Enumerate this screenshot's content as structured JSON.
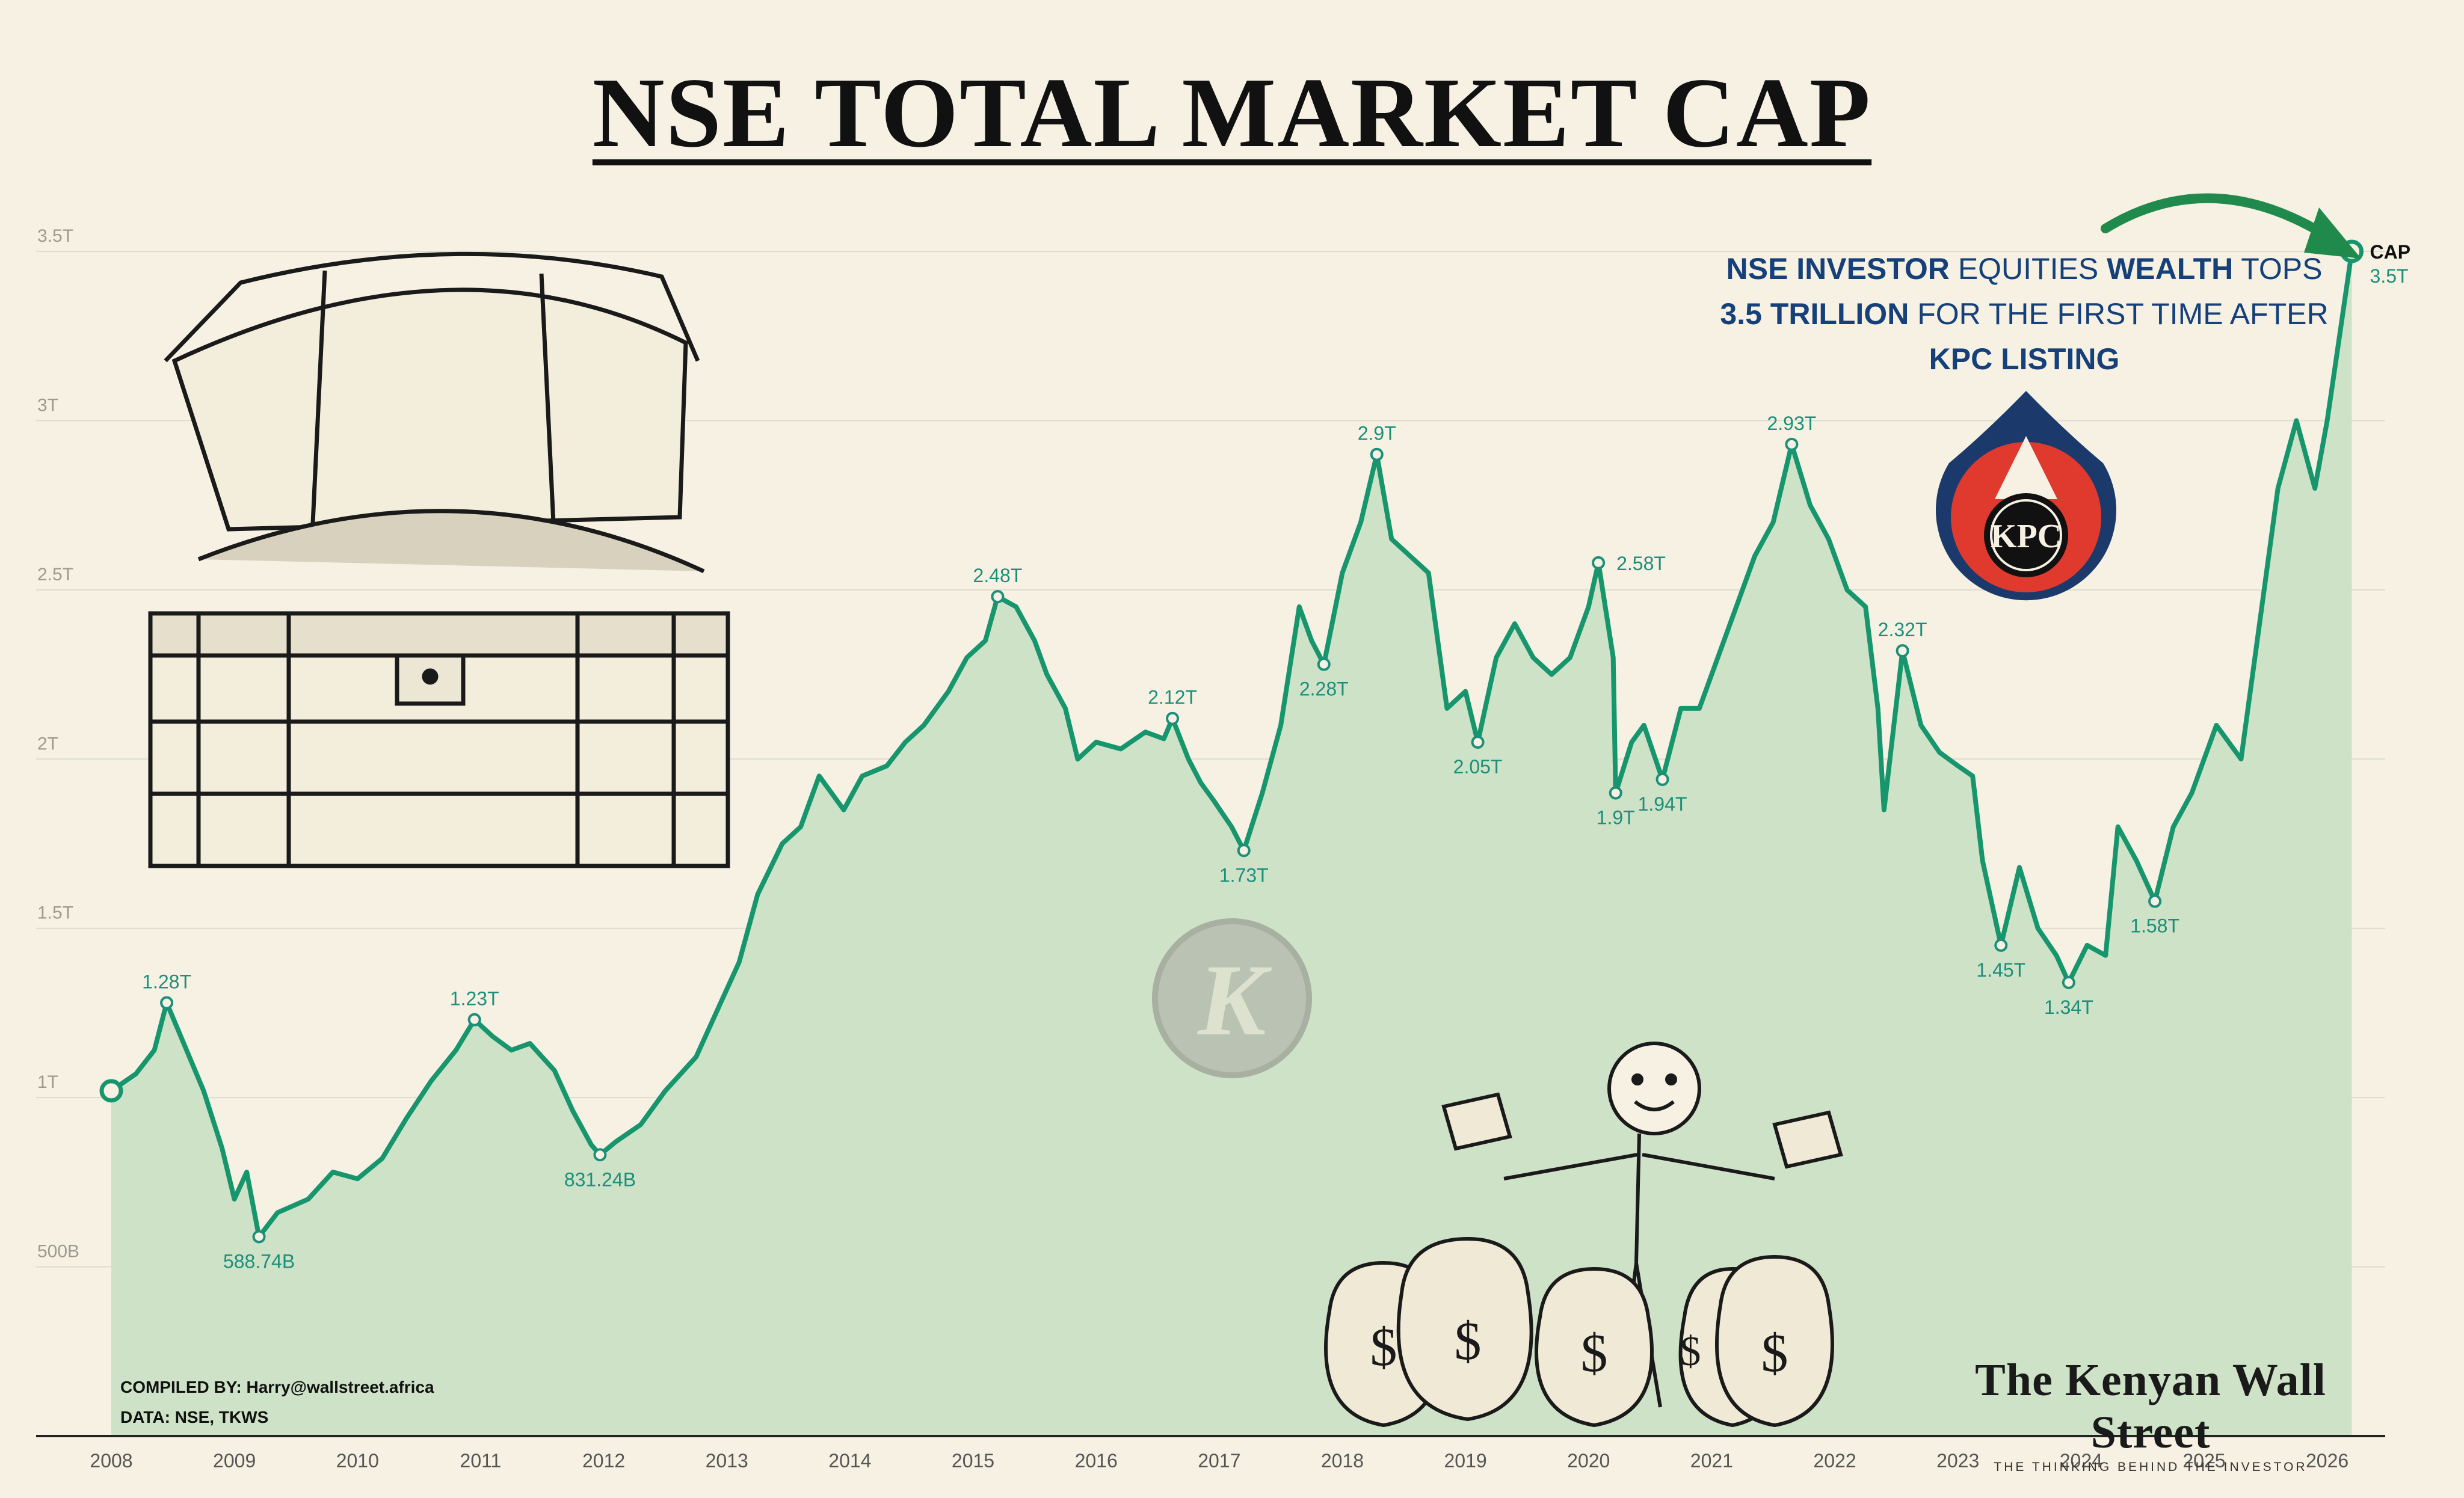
{
  "title": "NSE TOTAL MARKET CAP",
  "headline": {
    "part1_bold": "NSE INVESTOR",
    "part2": " EQUITIES ",
    "part3_bold": "WEALTH",
    "part4": " TOPS",
    "part5_bold": "3.5 TRILLION",
    "part6": " FOR THE FIRST TIME AFTER",
    "part7_bold": "KPC LISTING"
  },
  "kpc_logo_text": "KPC",
  "watermark_letter": "K",
  "end_label": {
    "name": "CAP",
    "value": "3.5T"
  },
  "credits": {
    "compiled": "COMPILED BY: Harry@wallstreet.africa",
    "data": "DATA: NSE, TKWS"
  },
  "brand": {
    "name": "The Kenyan Wall Street",
    "tagline": "THE THINKING BEHIND THE INVESTOR"
  },
  "colors": {
    "line": "#17966e",
    "area": "#cde2c7",
    "label": "#1b8f7a",
    "background": "#f6f1e3",
    "headline": "#16407a"
  },
  "chart_data": {
    "type": "area",
    "series": [
      {
        "name": "CAP"
      }
    ],
    "xlabel": "",
    "ylabel": "",
    "xlim": [
      2008,
      2026.3
    ],
    "ylim": [
      0,
      3.5
    ],
    "x_ticks": [
      2008,
      2009,
      2010,
      2011,
      2012,
      2013,
      2014,
      2015,
      2016,
      2017,
      2018,
      2019,
      2020,
      2021,
      2022,
      2023,
      2024,
      2025,
      2026
    ],
    "y_ticks": [
      {
        "value": 0.5,
        "label": "500B"
      },
      {
        "value": 1,
        "label": "1T"
      },
      {
        "value": 1.5,
        "label": "1.5T"
      },
      {
        "value": 2,
        "label": "2T"
      },
      {
        "value": 2.5,
        "label": "2.5T"
      },
      {
        "value": 3,
        "label": "3T"
      },
      {
        "value": 3.5,
        "label": "3.5T"
      }
    ],
    "grid": true,
    "points": [
      [
        2008.0,
        1.02
      ],
      [
        2008.2,
        1.07
      ],
      [
        2008.35,
        1.14
      ],
      [
        2008.45,
        1.28
      ],
      [
        2008.6,
        1.15
      ],
      [
        2008.75,
        1.02
      ],
      [
        2008.9,
        0.85
      ],
      [
        2009.0,
        0.7
      ],
      [
        2009.1,
        0.78
      ],
      [
        2009.2,
        0.589
      ],
      [
        2009.35,
        0.66
      ],
      [
        2009.6,
        0.7
      ],
      [
        2009.8,
        0.78
      ],
      [
        2010.0,
        0.76
      ],
      [
        2010.2,
        0.82
      ],
      [
        2010.4,
        0.94
      ],
      [
        2010.6,
        1.05
      ],
      [
        2010.8,
        1.14
      ],
      [
        2010.95,
        1.23
      ],
      [
        2011.1,
        1.18
      ],
      [
        2011.25,
        1.14
      ],
      [
        2011.4,
        1.16
      ],
      [
        2011.6,
        1.08
      ],
      [
        2011.75,
        0.96
      ],
      [
        2011.9,
        0.86
      ],
      [
        2011.97,
        0.831
      ],
      [
        2012.1,
        0.87
      ],
      [
        2012.3,
        0.92
      ],
      [
        2012.5,
        1.02
      ],
      [
        2012.75,
        1.12
      ],
      [
        2012.95,
        1.28
      ],
      [
        2013.1,
        1.4
      ],
      [
        2013.25,
        1.6
      ],
      [
        2013.45,
        1.75
      ],
      [
        2013.6,
        1.8
      ],
      [
        2013.75,
        1.95
      ],
      [
        2013.95,
        1.85
      ],
      [
        2014.1,
        1.95
      ],
      [
        2014.3,
        1.98
      ],
      [
        2014.45,
        2.05
      ],
      [
        2014.6,
        2.1
      ],
      [
        2014.8,
        2.2
      ],
      [
        2014.95,
        2.3
      ],
      [
        2015.1,
        2.35
      ],
      [
        2015.2,
        2.48
      ],
      [
        2015.35,
        2.45
      ],
      [
        2015.5,
        2.35
      ],
      [
        2015.6,
        2.25
      ],
      [
        2015.75,
        2.15
      ],
      [
        2015.85,
        2.0
      ],
      [
        2016.0,
        2.05
      ],
      [
        2016.2,
        2.03
      ],
      [
        2016.4,
        2.08
      ],
      [
        2016.55,
        2.06
      ],
      [
        2016.62,
        2.12
      ],
      [
        2016.75,
        2.0
      ],
      [
        2016.85,
        1.93
      ],
      [
        2016.95,
        1.88
      ],
      [
        2017.1,
        1.8
      ],
      [
        2017.2,
        1.73
      ],
      [
        2017.35,
        1.9
      ],
      [
        2017.5,
        2.1
      ],
      [
        2017.65,
        2.45
      ],
      [
        2017.75,
        2.35
      ],
      [
        2017.85,
        2.28
      ],
      [
        2018.0,
        2.55
      ],
      [
        2018.15,
        2.7
      ],
      [
        2018.28,
        2.9
      ],
      [
        2018.4,
        2.65
      ],
      [
        2018.55,
        2.6
      ],
      [
        2018.7,
        2.55
      ],
      [
        2018.85,
        2.15
      ],
      [
        2019.0,
        2.2
      ],
      [
        2019.1,
        2.05
      ],
      [
        2019.25,
        2.3
      ],
      [
        2019.4,
        2.4
      ],
      [
        2019.55,
        2.3
      ],
      [
        2019.7,
        2.25
      ],
      [
        2019.85,
        2.3
      ],
      [
        2020.0,
        2.45
      ],
      [
        2020.08,
        2.58
      ],
      [
        2020.2,
        2.3
      ],
      [
        2020.22,
        1.9
      ],
      [
        2020.35,
        2.05
      ],
      [
        2020.45,
        2.1
      ],
      [
        2020.6,
        1.94
      ],
      [
        2020.75,
        2.15
      ],
      [
        2020.9,
        2.15
      ],
      [
        2021.05,
        2.3
      ],
      [
        2021.2,
        2.45
      ],
      [
        2021.35,
        2.6
      ],
      [
        2021.5,
        2.7
      ],
      [
        2021.65,
        2.93
      ],
      [
        2021.8,
        2.75
      ],
      [
        2021.95,
        2.65
      ],
      [
        2022.1,
        2.5
      ],
      [
        2022.25,
        2.45
      ],
      [
        2022.35,
        2.15
      ],
      [
        2022.4,
        1.85
      ],
      [
        2022.55,
        2.32
      ],
      [
        2022.7,
        2.1
      ],
      [
        2022.85,
        2.02
      ],
      [
        2023.0,
        1.98
      ],
      [
        2023.12,
        1.95
      ],
      [
        2023.2,
        1.7
      ],
      [
        2023.35,
        1.45
      ],
      [
        2023.5,
        1.68
      ],
      [
        2023.65,
        1.5
      ],
      [
        2023.8,
        1.42
      ],
      [
        2023.9,
        1.34
      ],
      [
        2024.05,
        1.45
      ],
      [
        2024.2,
        1.42
      ],
      [
        2024.3,
        1.8
      ],
      [
        2024.45,
        1.7
      ],
      [
        2024.6,
        1.58
      ],
      [
        2024.75,
        1.8
      ],
      [
        2024.9,
        1.9
      ],
      [
        2025.1,
        2.1
      ],
      [
        2025.3,
        2.0
      ],
      [
        2025.45,
        2.4
      ],
      [
        2025.6,
        2.8
      ],
      [
        2025.75,
        3.0
      ],
      [
        2025.9,
        2.8
      ],
      [
        2026.0,
        3.0
      ],
      [
        2026.1,
        3.25
      ],
      [
        2026.2,
        3.5
      ]
    ],
    "annotations": [
      {
        "x": 2008.45,
        "y": 1.28,
        "label": "1.28T",
        "pos": "above"
      },
      {
        "x": 2009.2,
        "y": 0.589,
        "label": "588.74B",
        "pos": "below"
      },
      {
        "x": 2010.95,
        "y": 1.23,
        "label": "1.23T",
        "pos": "above"
      },
      {
        "x": 2011.97,
        "y": 0.831,
        "label": "831.24B",
        "pos": "below"
      },
      {
        "x": 2015.2,
        "y": 2.48,
        "label": "2.48T",
        "pos": "above"
      },
      {
        "x": 2016.62,
        "y": 2.12,
        "label": "2.12T",
        "pos": "above"
      },
      {
        "x": 2017.2,
        "y": 1.73,
        "label": "1.73T",
        "pos": "below"
      },
      {
        "x": 2017.85,
        "y": 2.28,
        "label": "2.28T",
        "pos": "below"
      },
      {
        "x": 2018.28,
        "y": 2.9,
        "label": "2.9T",
        "pos": "above"
      },
      {
        "x": 2019.1,
        "y": 2.05,
        "label": "2.05T",
        "pos": "below"
      },
      {
        "x": 2020.08,
        "y": 2.58,
        "label": "2.58T",
        "pos": "right"
      },
      {
        "x": 2020.22,
        "y": 1.9,
        "label": "1.9T",
        "pos": "below"
      },
      {
        "x": 2020.6,
        "y": 1.94,
        "label": "1.94T",
        "pos": "below"
      },
      {
        "x": 2021.65,
        "y": 2.93,
        "label": "2.93T",
        "pos": "above"
      },
      {
        "x": 2022.55,
        "y": 2.32,
        "label": "2.32T",
        "pos": "above"
      },
      {
        "x": 2023.35,
        "y": 1.45,
        "label": "1.45T",
        "pos": "below"
      },
      {
        "x": 2023.9,
        "y": 1.34,
        "label": "1.34T",
        "pos": "below"
      },
      {
        "x": 2024.6,
        "y": 1.58,
        "label": "1.58T",
        "pos": "below"
      }
    ]
  }
}
